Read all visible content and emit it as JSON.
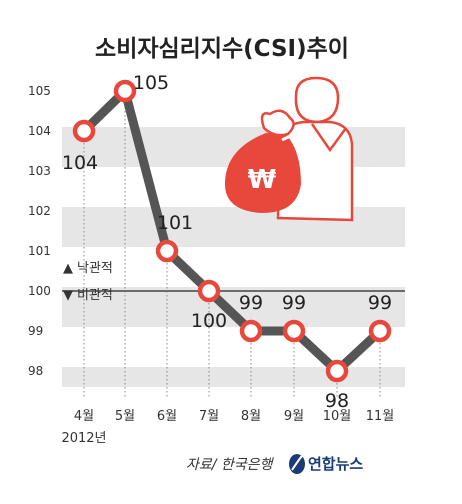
{
  "chart_data": {
    "type": "line",
    "title": "소비자심리지수(CSI)추이",
    "categories": [
      "4월",
      "5월",
      "6월",
      "7월",
      "8월",
      "9월",
      "10월",
      "11월"
    ],
    "year_label": "2012년",
    "values": [
      104,
      105,
      101,
      100,
      99,
      99,
      98,
      99
    ],
    "data_labels": [
      "104",
      "105",
      "101",
      "100",
      "99",
      "99",
      "98",
      "99"
    ],
    "yticks": [
      "98",
      "99",
      "100",
      "101",
      "102",
      "103",
      "104",
      "105"
    ],
    "ylim": [
      97.6,
      105.6
    ],
    "grid": "alternating horizontal bands",
    "reference_line": 100,
    "annotations": {
      "up_marker": "▲",
      "up_label": "낙관적",
      "down_marker": "▼",
      "down_label": "비관적"
    },
    "colors": {
      "line": "#555555",
      "marker_stroke": "#e8473b",
      "marker_fill": "#ffffff",
      "band": "#e6e6e6",
      "annotation": "#e0332c",
      "illustration": "#e8473b"
    },
    "source": "자료/ 한국은행",
    "brand": "연합뉴스",
    "illustration_icon": "money-bag-person-icon",
    "currency_symbol": "₩"
  }
}
